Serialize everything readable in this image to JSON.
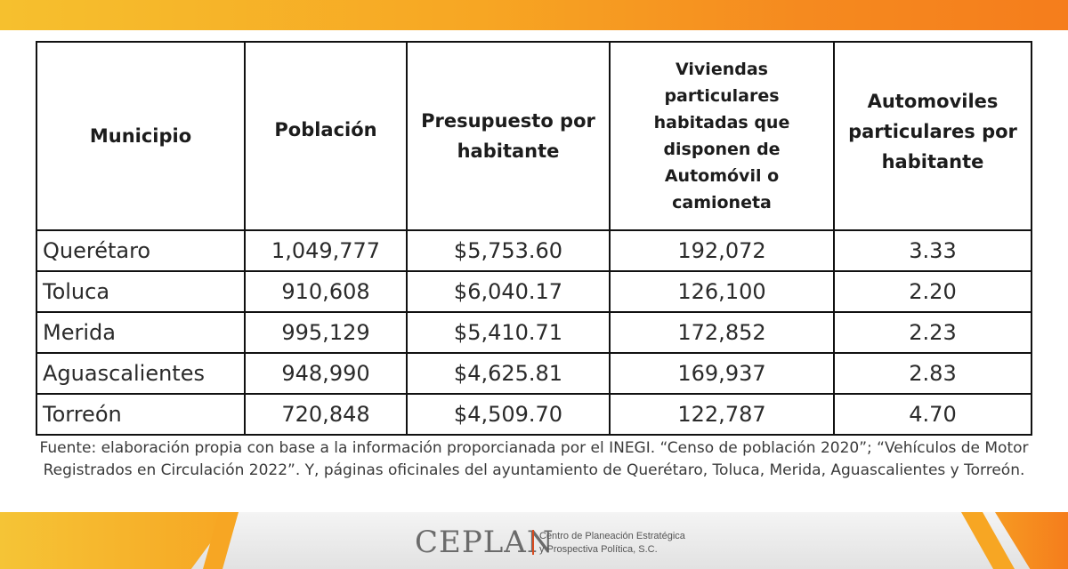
{
  "table": {
    "headers": [
      "Municipio",
      "Población",
      "Presupuesto por habitante",
      "Viviendas particulares habitadas que disponen de Automóvil o camioneta",
      "Automoviles particulares por habitante"
    ],
    "rows": [
      [
        "Querétaro",
        "1,049,777",
        "$5,753.60",
        "192,072",
        "3.33"
      ],
      [
        "Toluca",
        "910,608",
        "$6,040.17",
        "126,100",
        "2.20"
      ],
      [
        "Merida",
        "995,129",
        "$5,410.71",
        "172,852",
        "2.23"
      ],
      [
        "Aguascalientes",
        "948,990",
        "$4,625.81",
        "169,937",
        "2.83"
      ],
      [
        "Torreón",
        "720,848",
        "$4,509.70",
        "122,787",
        "4.70"
      ]
    ]
  },
  "note": "Fuente: elaboración propia con base a la información proporcianada por el INEGI. “Censo de población 2020”; “Vehículos de Motor Registrados en Circulación 2022”. Y, páginas oficinales del ayuntamiento de Querétaro, Toluca, Merida, Aguascalientes y Torreón.",
  "footer": {
    "logo_name": "CEPLAN",
    "logo_tagline_1": "Centro de Planeación Estratégica",
    "logo_tagline_2": "y Prospectiva Política, S.C."
  },
  "colors": {
    "band_start": "#f6c02e",
    "band_end": "#f57d1c",
    "logo_accent": "#d94a1e"
  }
}
